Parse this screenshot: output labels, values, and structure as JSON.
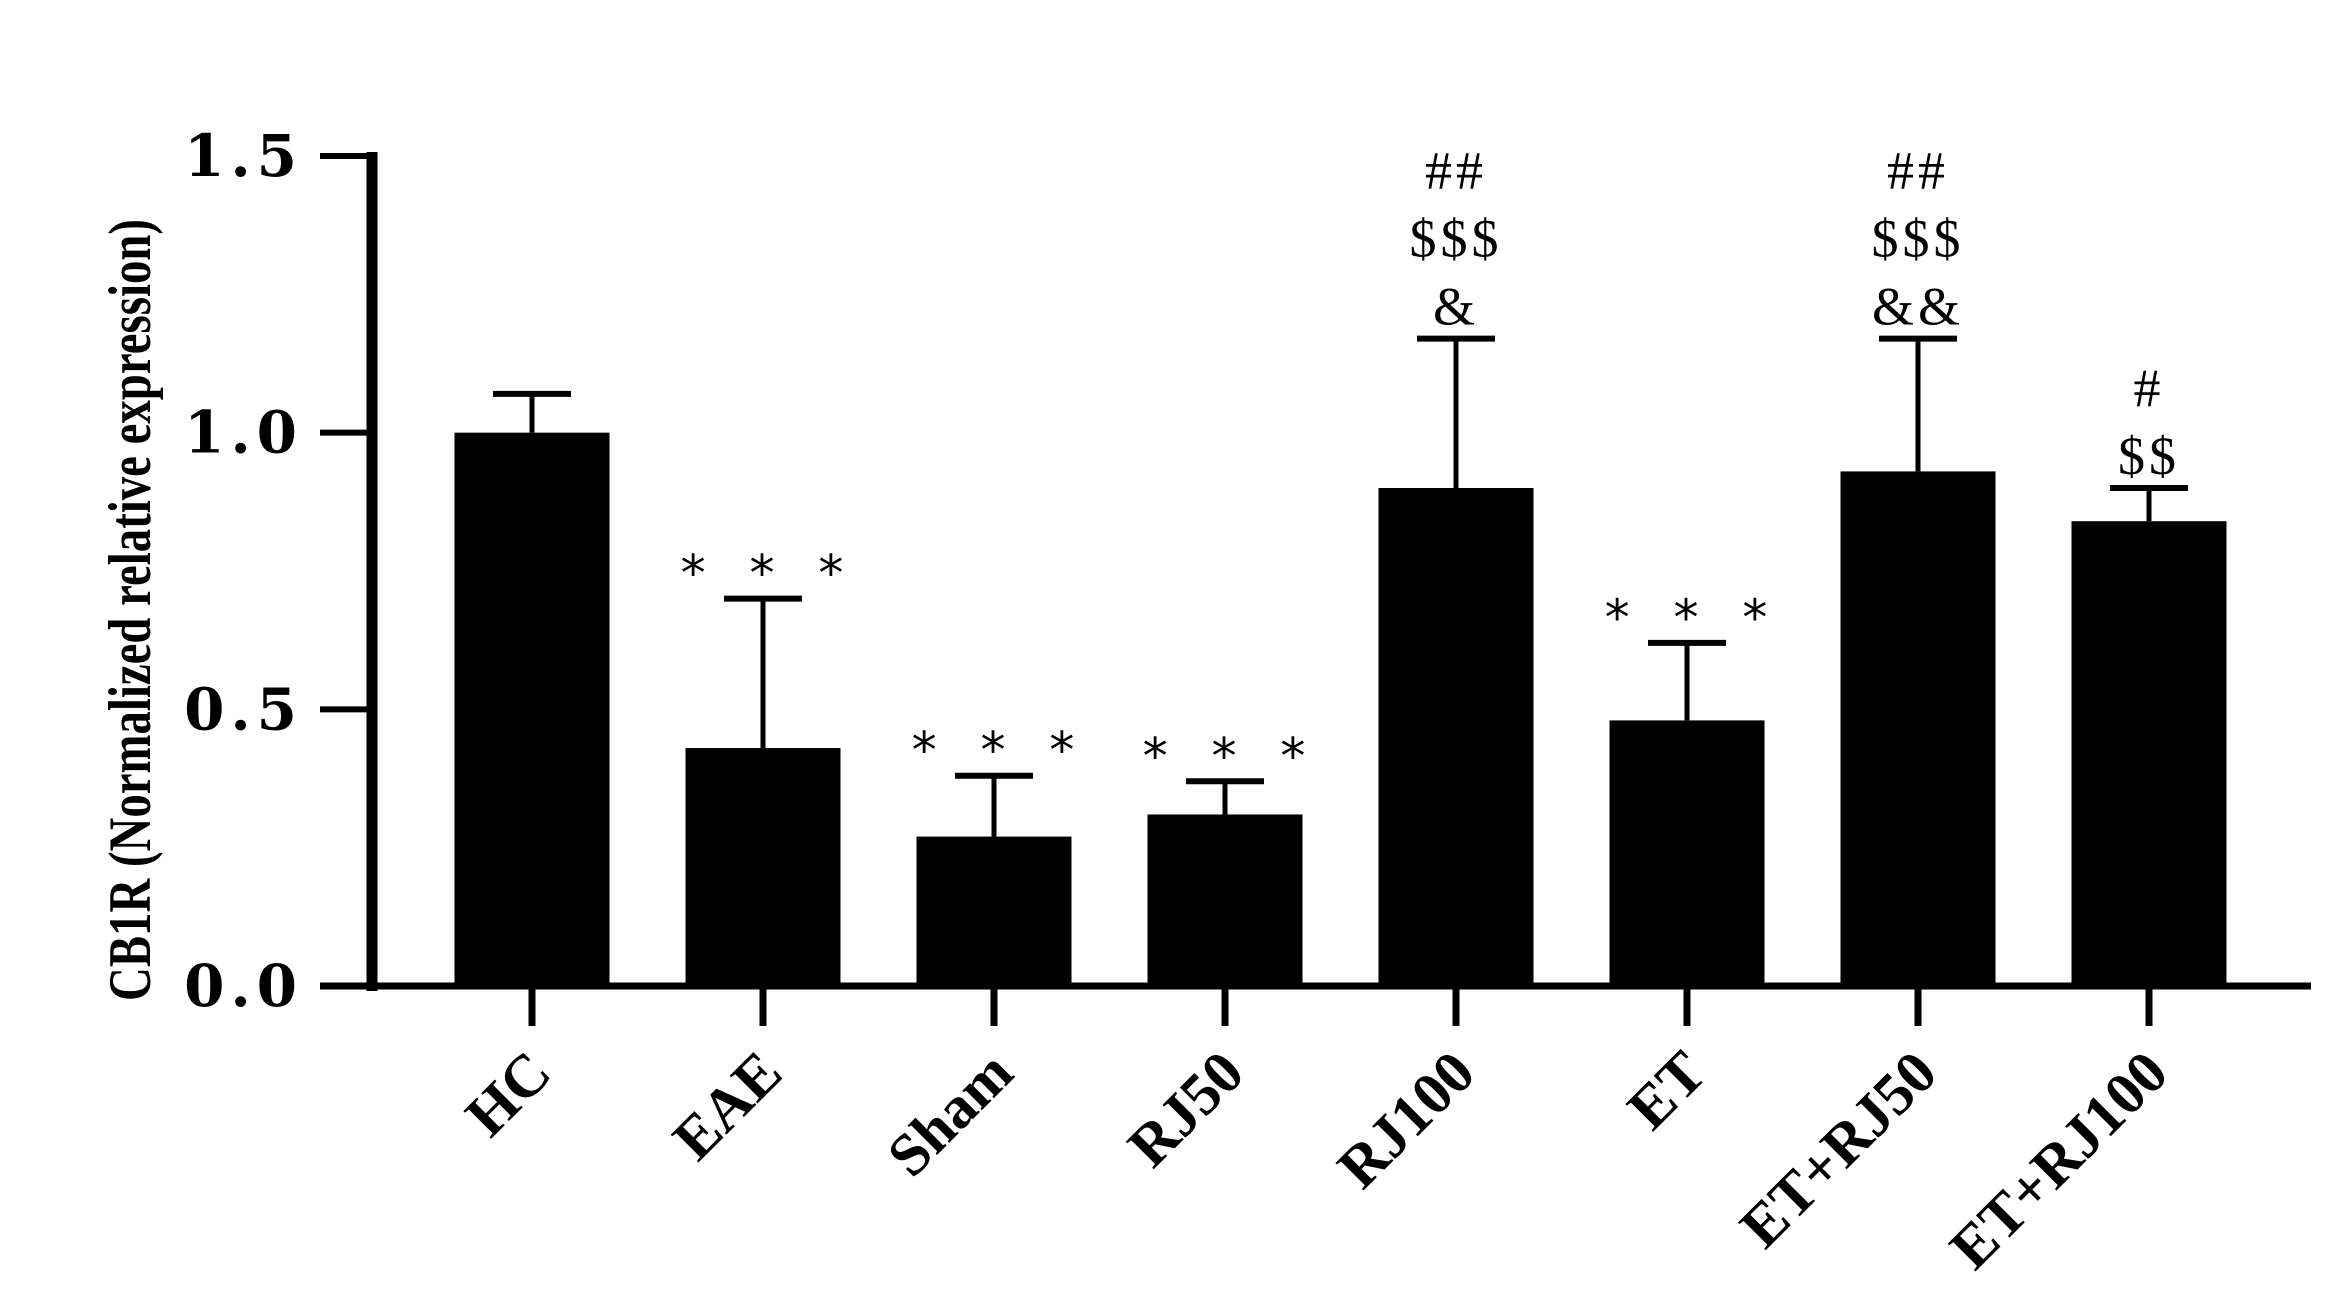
{
  "chart_data": {
    "type": "bar",
    "title": "",
    "xlabel": "",
    "ylabel": "CB1R (Normalized relative expression)",
    "ylim": [
      0,
      1.5
    ],
    "yticks": [
      0.0,
      0.5,
      1.0,
      1.5
    ],
    "ytick_labels": [
      "0.0",
      "0.5",
      "1.0",
      "1.5"
    ],
    "grid": false,
    "legend": null,
    "bar_color": "#000000",
    "categories": [
      "HC",
      "EAE",
      "Sham",
      "RJ50",
      "RJ100",
      "ET",
      "ET+RJ50",
      "ET+RJ100"
    ],
    "values": [
      1.0,
      0.43,
      0.27,
      0.31,
      0.9,
      0.48,
      0.93,
      0.84
    ],
    "error_upper": [
      1.07,
      0.7,
      0.38,
      0.37,
      1.17,
      0.62,
      1.17,
      0.9
    ],
    "annotations": [
      {
        "category": "HC",
        "lines": []
      },
      {
        "category": "EAE",
        "lines": [
          "***"
        ]
      },
      {
        "category": "Sham",
        "lines": [
          "***"
        ]
      },
      {
        "category": "RJ50",
        "lines": [
          "***"
        ]
      },
      {
        "category": "RJ100",
        "lines": [
          "##",
          "$$$",
          "&"
        ]
      },
      {
        "category": "ET",
        "lines": [
          "***"
        ]
      },
      {
        "category": "ET+RJ50",
        "lines": [
          "##",
          "$$$",
          "&&"
        ]
      },
      {
        "category": "ET+RJ100",
        "lines": [
          "#",
          "$$"
        ]
      }
    ]
  }
}
